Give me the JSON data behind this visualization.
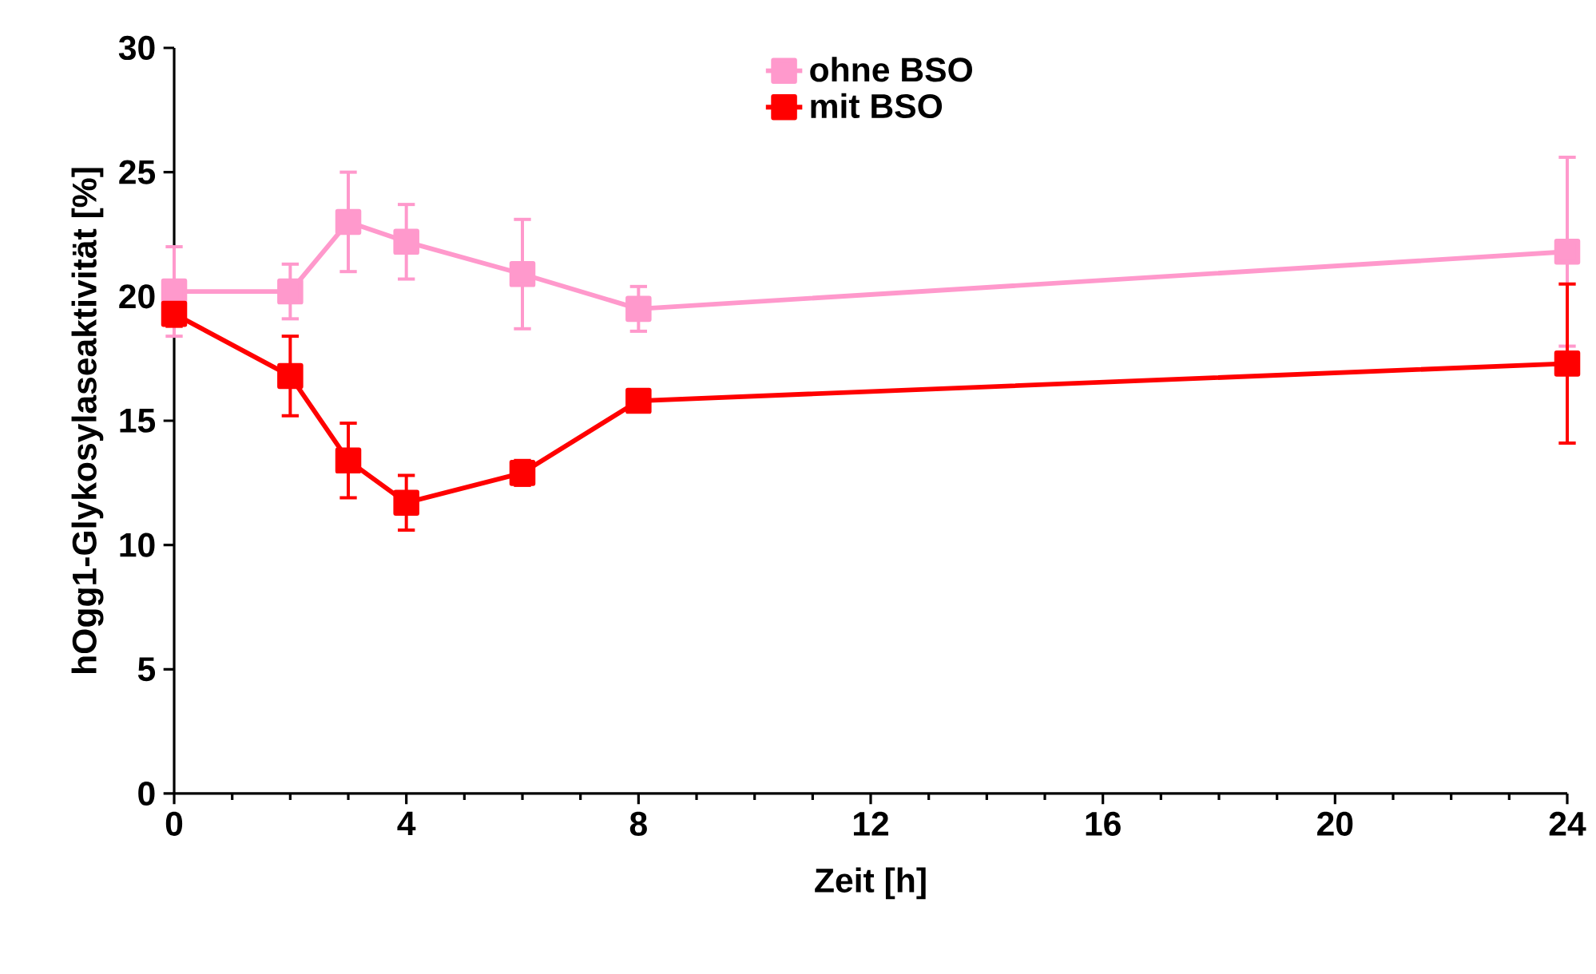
{
  "chart_data": {
    "type": "line",
    "xlabel": "Zeit [h]",
    "ylabel": "hOgg1-Glykosylaseaktivität [%]",
    "x": [
      0,
      2,
      3,
      4,
      6,
      8,
      24
    ],
    "series": [
      {
        "name": "ohne BSO",
        "color": "#ff99cc",
        "values": [
          20.2,
          20.2,
          23.0,
          22.2,
          20.9,
          19.5,
          21.8
        ],
        "errors": [
          1.8,
          1.1,
          2.0,
          1.5,
          2.2,
          0.9,
          3.8
        ]
      },
      {
        "name": "mit BSO",
        "color": "#ff0000",
        "values": [
          19.3,
          16.8,
          13.4,
          11.7,
          12.9,
          15.8,
          17.3
        ],
        "errors": [
          0.5,
          1.6,
          1.5,
          1.1,
          0.5,
          0.4,
          3.2
        ]
      }
    ],
    "xlim": [
      0,
      24
    ],
    "xticks": [
      0,
      4,
      8,
      12,
      16,
      20,
      24
    ],
    "ylim": [
      0,
      30
    ],
    "yticks": [
      0,
      5,
      10,
      15,
      20,
      25,
      30
    ],
    "grid": false,
    "legend": "top",
    "marker": "square",
    "line_style": "solid"
  }
}
